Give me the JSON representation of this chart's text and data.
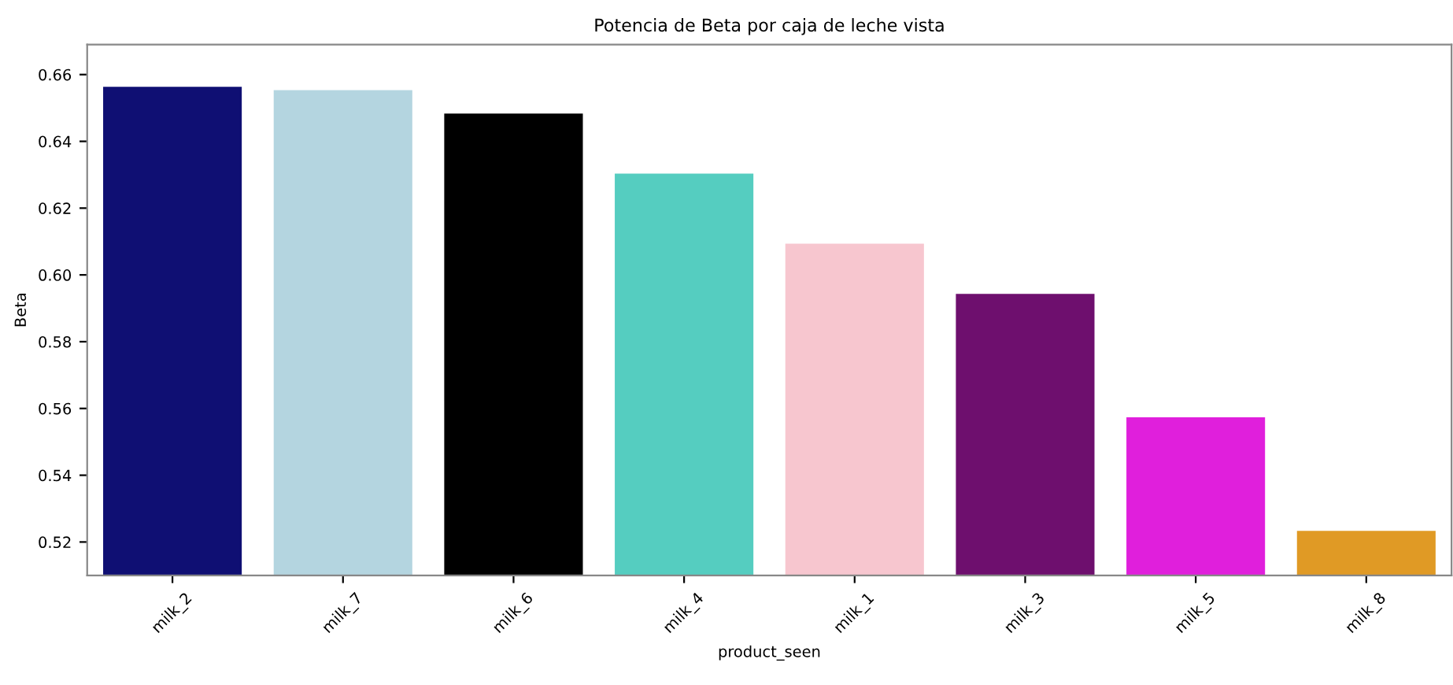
{
  "chart_data": {
    "type": "bar",
    "title": "Potencia de Beta por caja de leche vista",
    "xlabel": "product_seen",
    "ylabel": "Beta",
    "categories": [
      "milk_2",
      "milk_7",
      "milk_6",
      "milk_4",
      "milk_1",
      "milk_3",
      "milk_5",
      "milk_8"
    ],
    "values": [
      0.656,
      0.655,
      0.648,
      0.63,
      0.609,
      0.594,
      0.557,
      0.523
    ],
    "colors": [
      "#0f0f73",
      "#b4d5e0",
      "#000000",
      "#55cdc0",
      "#f7c6cf",
      "#6e0f6e",
      "#e01fdc",
      "#e09a25"
    ],
    "ylim": [
      0.51,
      0.669
    ],
    "yticks": [
      {
        "value": 0.52,
        "label": "0.52"
      },
      {
        "value": 0.54,
        "label": "0.54"
      },
      {
        "value": 0.56,
        "label": "0.56"
      },
      {
        "value": 0.58,
        "label": "0.58"
      },
      {
        "value": 0.6,
        "label": "0.60"
      },
      {
        "value": 0.62,
        "label": "0.62"
      },
      {
        "value": 0.64,
        "label": "0.64"
      },
      {
        "value": 0.66,
        "label": "0.66"
      }
    ],
    "grid": false
  }
}
